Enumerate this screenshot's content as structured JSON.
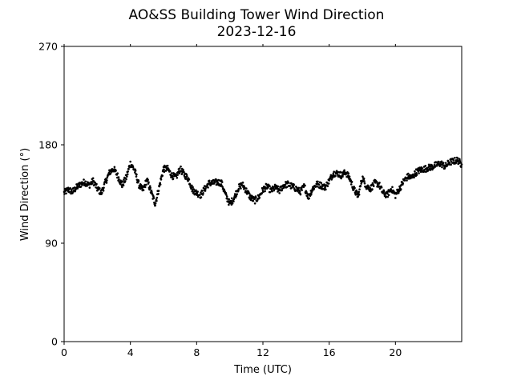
{
  "chart_data": {
    "type": "scatter",
    "title": "AO&SS Building Tower Wind Direction",
    "subtitle": "2023-12-16",
    "xlabel": "Time (UTC)",
    "ylabel": "Wind Direction (°)",
    "xlim": [
      0,
      24
    ],
    "ylim": [
      0,
      270
    ],
    "xticks": [
      0,
      4,
      8,
      12,
      16,
      20
    ],
    "xtick_labels": [
      "0",
      "4",
      "8",
      "12",
      "16",
      "20"
    ],
    "yticks": [
      0,
      90,
      180,
      270
    ],
    "ytick_labels": [
      "0",
      "90",
      "180",
      "270"
    ],
    "grid": false,
    "legend": "none",
    "marker_color": "#000000",
    "series": [
      {
        "x": [
          0.0,
          0.25,
          0.5,
          0.75,
          1.0,
          1.25,
          1.5,
          1.75,
          2.0,
          2.25,
          2.5,
          2.75,
          3.0,
          3.25,
          3.5,
          3.75,
          4.0,
          4.25,
          4.5,
          4.75,
          5.0,
          5.25,
          5.5,
          5.75,
          6.0,
          6.25,
          6.5,
          6.75,
          7.0,
          7.25,
          7.5,
          7.75,
          8.0,
          8.25,
          8.5,
          8.75,
          9.0,
          9.25,
          9.5,
          9.75,
          10.0,
          10.25,
          10.5,
          10.75,
          11.0,
          11.25,
          11.5,
          11.75,
          12.0,
          12.25,
          12.5,
          12.75,
          13.0,
          13.25,
          13.5,
          13.75,
          14.0,
          14.25,
          14.5,
          14.75,
          15.0,
          15.25,
          15.5,
          15.75,
          16.0,
          16.25,
          16.5,
          16.75,
          17.0,
          17.25,
          17.5,
          17.75,
          18.0,
          18.25,
          18.5,
          18.75,
          19.0,
          19.25,
          19.5,
          19.75,
          20.0,
          20.25,
          20.5,
          20.75,
          21.0,
          21.25,
          21.5,
          21.75,
          22.0,
          22.25,
          22.5,
          22.75,
          23.0,
          23.25,
          23.5,
          23.75,
          24.0
        ],
        "y": [
          136,
          139,
          137,
          141,
          144,
          146,
          143,
          147,
          140,
          136,
          146,
          155,
          158,
          151,
          143,
          150,
          163,
          157,
          144,
          138,
          148,
          137,
          126,
          142,
          158,
          158,
          152,
          150,
          158,
          153,
          149,
          139,
          136,
          134,
          140,
          145,
          145,
          146,
          145,
          134,
          126,
          131,
          140,
          144,
          138,
          132,
          129,
          132,
          139,
          142,
          138,
          141,
          138,
          143,
          144,
          142,
          140,
          137,
          142,
          132,
          140,
          144,
          143,
          141,
          147,
          154,
          154,
          152,
          155,
          149,
          139,
          133,
          150,
          142,
          140,
          145,
          144,
          136,
          134,
          140,
          134,
          140,
          147,
          151,
          150,
          155,
          157,
          158,
          159,
          160,
          162,
          163,
          160,
          164,
          165,
          166,
          162
        ]
      }
    ]
  }
}
